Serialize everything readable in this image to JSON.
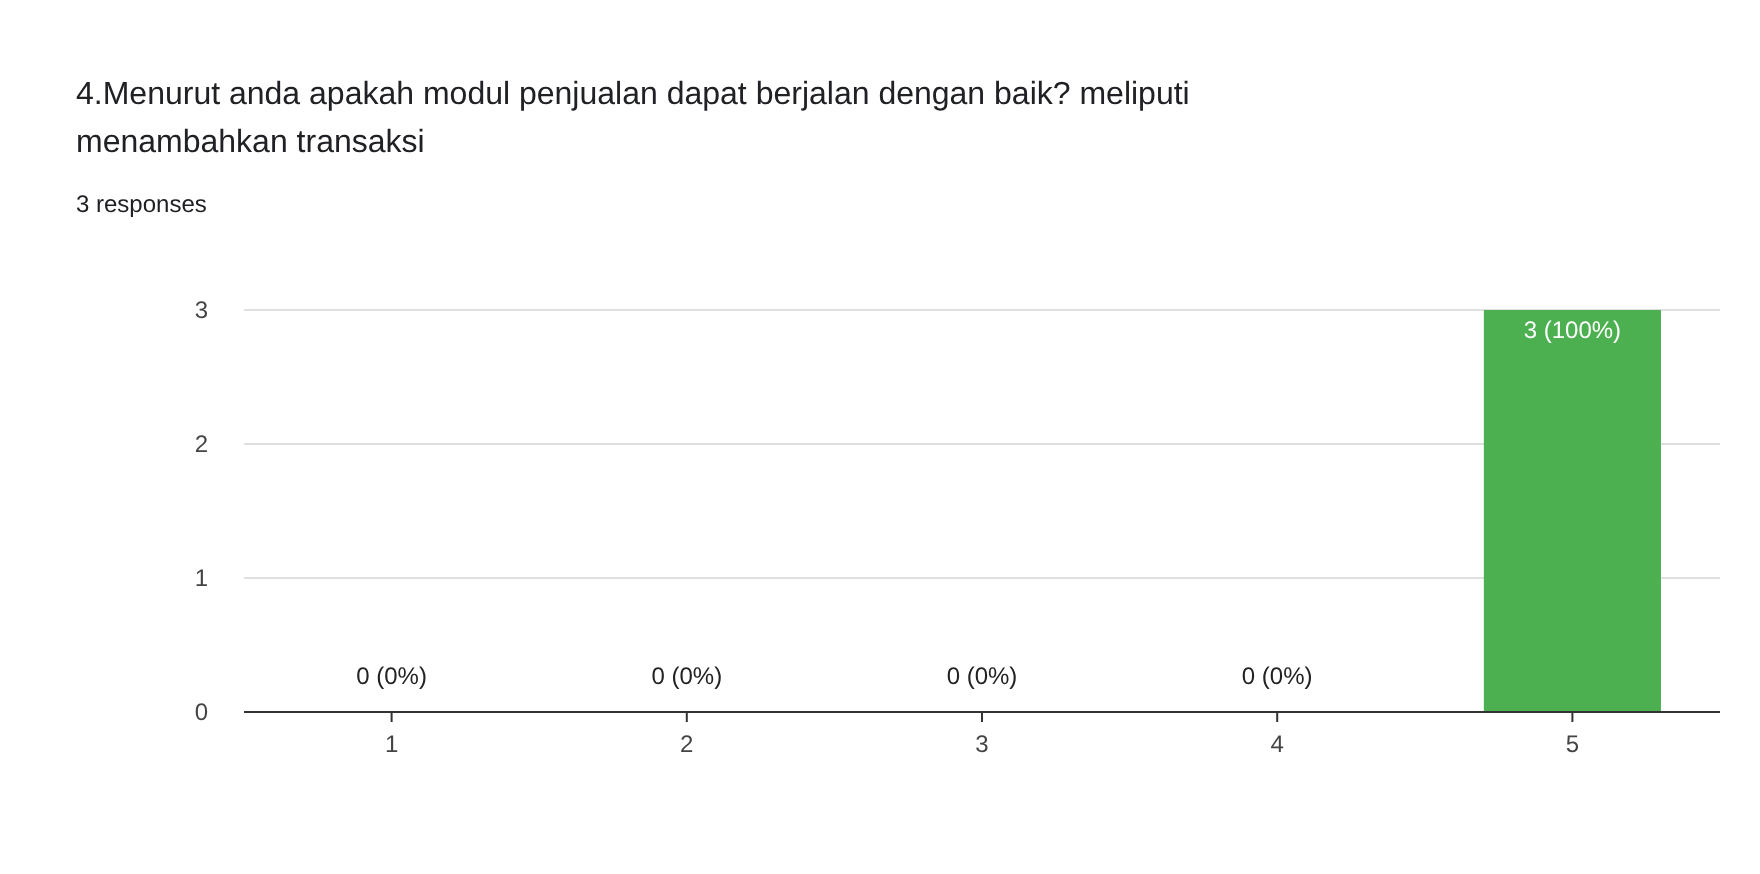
{
  "chart_data": {
    "type": "bar",
    "title": "4.Menurut anda apakah modul penjualan dapat berjalan dengan baik? meliputi menambahkan transaksi",
    "subtitle": "3 responses",
    "categories": [
      "1",
      "2",
      "3",
      "4",
      "5"
    ],
    "values": [
      0,
      0,
      0,
      0,
      3
    ],
    "value_labels": [
      "0 (0%)",
      "0 (0%)",
      "0 (0%)",
      "0 (0%)",
      "3 (100%)"
    ],
    "color": "#4caf50",
    "ylim": [
      0,
      3
    ],
    "yticks": [
      0,
      1,
      2,
      3
    ],
    "grid": "y"
  }
}
